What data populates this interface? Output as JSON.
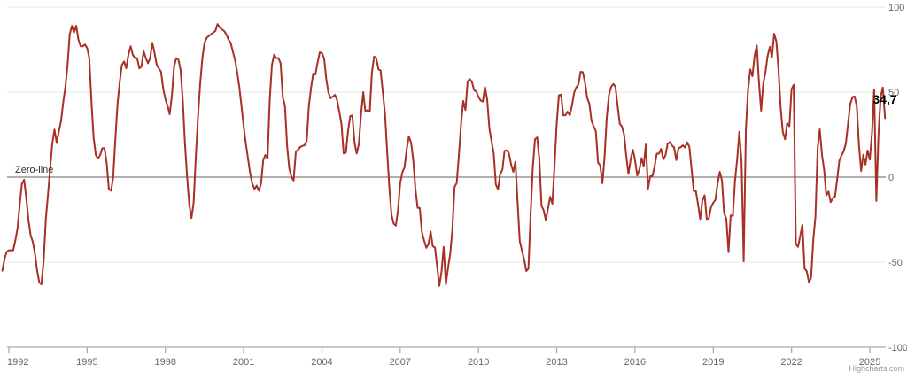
{
  "chart": {
    "credits_label": "Highcharts.com",
    "zero_line_label": "Zero-line",
    "last_value_label": "34,7",
    "colors": {
      "series": "#a83026",
      "gridline": "#e6e6e6",
      "zero_line": "#808080",
      "axis_line": "#aaaaaa",
      "tick_label": "#666666",
      "background": "#ffffff"
    }
  },
  "chart_data": {
    "type": "line",
    "title": "",
    "xlabel": "",
    "ylabel": "",
    "legend": "none",
    "grid": "horizontal",
    "ylim": [
      -100,
      100
    ],
    "frequency": "monthly",
    "x_range": [
      "1991-10",
      "2025-08"
    ],
    "x_tick_labels": [
      "1992",
      "1995",
      "1998",
      "2001",
      "2004",
      "2007",
      "2010",
      "2013",
      "2016",
      "2019",
      "2022",
      "2025"
    ],
    "x_tick_years": [
      1992,
      1995,
      1998,
      2001,
      2004,
      2007,
      2010,
      2013,
      2016,
      2019,
      2022,
      2025
    ],
    "y_ticks": [
      {
        "label": "100",
        "value": 100
      },
      {
        "label": "50",
        "value": 50
      },
      {
        "label": "0",
        "value": 0
      },
      {
        "label": "-50",
        "value": -50
      },
      {
        "label": "-100",
        "value": -100
      }
    ],
    "zero_plotline": {
      "value": 0,
      "label": "Zero-line"
    },
    "last_value": 34.7,
    "last_value_label": "34,7",
    "series": [
      {
        "name": "",
        "color": "#a83026",
        "start": "1991-10",
        "values": [
          -55,
          -48,
          -44,
          -43,
          -43,
          -43,
          -37,
          -30,
          -16,
          -4,
          -1.5,
          -12,
          -25,
          -34,
          -38,
          -45,
          -55,
          -62,
          -63,
          -49,
          -25,
          -10,
          5,
          20,
          28,
          20,
          27,
          33,
          44,
          53,
          66,
          84,
          89,
          85,
          89,
          81,
          77,
          77,
          78,
          76,
          70,
          44,
          23,
          13,
          11,
          13,
          17,
          17,
          8,
          -7,
          -8,
          0,
          23,
          43,
          56,
          66,
          68,
          64,
          72,
          77,
          72,
          70,
          70,
          64,
          65,
          74,
          70,
          67,
          70,
          79,
          73,
          66,
          64,
          62,
          52,
          46,
          42,
          37,
          48,
          65,
          70,
          69,
          63,
          45,
          20,
          0,
          -16,
          -24,
          -15,
          12,
          35,
          55,
          70,
          79,
          82,
          83,
          84,
          85,
          86,
          90,
          88,
          87,
          86,
          84,
          81,
          79,
          74,
          69,
          62,
          53,
          42,
          30,
          20,
          11,
          2,
          -4,
          -7,
          -5,
          -8,
          -4,
          10,
          13,
          11,
          45,
          66,
          72,
          70,
          70,
          67,
          47,
          42,
          18,
          5,
          0,
          -2,
          15,
          16,
          17.7,
          18.4,
          18.7,
          21.3,
          41.9,
          52.5,
          60.9,
          60.3,
          67.2,
          73.4,
          72.9,
          69.9,
          57.6,
          49.7,
          46.4,
          47.4,
          48.4,
          45.3,
          38.4,
          31.3,
          13.9,
          14.4,
          26.9,
          35.9,
          36.3,
          20.1,
          13.9,
          19.5,
          37.0,
          50.0,
          38.6,
          39.4,
          38.7,
          61.6,
          71.0,
          69.8,
          63.4,
          62.7,
          50.0,
          37.8,
          15.1,
          -5.6,
          -22.2,
          -27.4,
          -28.5,
          -19.0,
          -3.6,
          2.9,
          5.8,
          16.5,
          24.0,
          20.3,
          10.4,
          -6.9,
          -18.1,
          -18.1,
          -32.5,
          -37.2,
          -41.6,
          -39.5,
          -32.0,
          -40.7,
          -41.4,
          -52.4,
          -63.9,
          -55.5,
          -41.1,
          -63.0,
          -53.5,
          -45.2,
          -31.0,
          -5.8,
          -3.5,
          13.0,
          31.1,
          44.8,
          39.5,
          56.1,
          57.7,
          56.0,
          51.1,
          50.4,
          47.2,
          45.1,
          44.5,
          53.0,
          45.8,
          28.7,
          21.2,
          14.0,
          -4.3,
          -7.2,
          1.8,
          4.3,
          15.4,
          15.7,
          14.1,
          7.6,
          3.1,
          9.0,
          -15.1,
          -37.6,
          -43.3,
          -48.3,
          -55.2,
          -53.8,
          -21.6,
          5.4,
          22.3,
          23.4,
          10.8,
          -16.9,
          -19.6,
          -25.5,
          -18.2,
          -11.5,
          -15.7,
          6.9,
          31.5,
          48.2,
          48.5,
          36.3,
          36.4,
          38.5,
          36.3,
          42.0,
          49.6,
          52.8,
          54.6,
          62.0,
          61.7,
          55.7,
          46.6,
          43.2,
          33.1,
          29.8,
          27.1,
          8.6,
          6.9,
          -3.6,
          11.5,
          34.9,
          48.4,
          53.0,
          54.8,
          53.3,
          41.9,
          31.5,
          29.7,
          25.0,
          12.1,
          1.9,
          10.4,
          16.1,
          10.2,
          1.0,
          4.3,
          11.2,
          6.4,
          19.2,
          -6.8,
          0.5,
          0.5,
          6.2,
          13.8,
          13.8,
          16.6,
          10.4,
          12.8,
          19.5,
          20.6,
          18.6,
          17.5,
          10.0,
          17.0,
          17.6,
          18.7,
          17.4,
          20.4,
          17.8,
          5.1,
          -8.2,
          -8.2,
          -16.1,
          -24.7,
          -13.7,
          -10.6,
          -24.7,
          -24.1,
          -17.5,
          -15.0,
          -13.4,
          -3.6,
          3.1,
          -2.1,
          -21.1,
          -24.5,
          -44.1,
          -22.5,
          -22.8,
          -2.1,
          10.7,
          26.7,
          8.7,
          -49.5,
          28.2,
          51.0,
          63.4,
          59.3,
          71.5,
          77.4,
          56.1,
          39.0,
          55.0,
          61.8,
          71.2,
          76.6,
          70.7,
          84.4,
          79.8,
          63.3,
          40.4,
          26.5,
          22.3,
          31.7,
          29.9,
          51.7,
          54.3,
          -39.3,
          -41.0,
          -34.3,
          -28.0,
          -53.8,
          -55.3,
          -61.9,
          -59.2,
          -36.7,
          -23.3,
          16.9,
          28.1,
          13.0,
          4.1,
          -10.7,
          -8.5,
          -14.7,
          -12.3,
          -11.4,
          -1.1,
          9.8,
          12.8,
          15.2,
          19.9,
          31.7,
          42.9,
          47.1,
          47.5,
          41.8,
          19.2,
          3.6,
          13.1,
          7.4,
          15.7,
          10.3,
          26.0,
          51.6,
          -14.0,
          25.2,
          47.5,
          52.7,
          34.7
        ]
      }
    ]
  }
}
